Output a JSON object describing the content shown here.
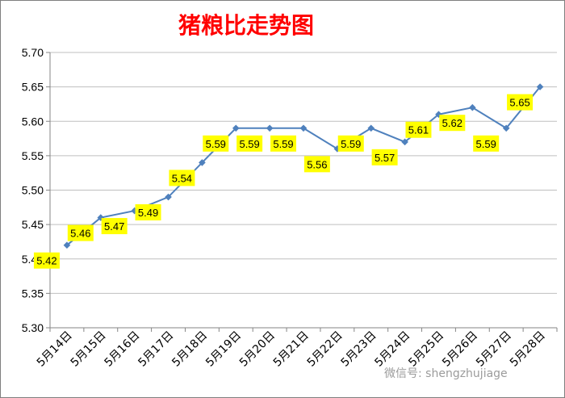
{
  "title": "猪粮比走势图",
  "watermark": "微信号: shengzhujiage",
  "colors": {
    "line": "#4f81bd",
    "marker": "#4f81bd",
    "label_bg": "#ffff00",
    "grid": "#bfbfbf",
    "axis": "#868686",
    "title": "#ff0000"
  },
  "chart_data": {
    "type": "line",
    "title": "猪粮比走势图",
    "categories": [
      "5月14日",
      "5月15日",
      "5月16日",
      "5月17日",
      "5月18日",
      "5月19日",
      "5月20日",
      "5月21日",
      "5月22日",
      "5月23日",
      "5月24日",
      "5月25日",
      "5月26日",
      "5月27日",
      "5月28日"
    ],
    "series": [
      {
        "values": [
          5.42,
          5.46,
          5.47,
          5.49,
          5.54,
          5.59,
          5.59,
          5.59,
          5.56,
          5.59,
          5.57,
          5.61,
          5.62,
          5.59,
          5.65
        ]
      }
    ],
    "data_labels": [
      "5.42",
      "5.46",
      "5.47",
      "5.49",
      "5.54",
      "5.59",
      "5.59",
      "5.59",
      "5.56",
      "5.59",
      "5.57",
      "5.61",
      "5.62",
      "5.59",
      "5.65"
    ],
    "ylim": [
      5.3,
      5.7
    ],
    "yticks": [
      "5.30",
      "5.35",
      "5.40",
      "5.45",
      "5.50",
      "5.55",
      "5.60",
      "5.65",
      "5.70"
    ],
    "grid": true,
    "legend": "none",
    "marker": "diamond"
  }
}
